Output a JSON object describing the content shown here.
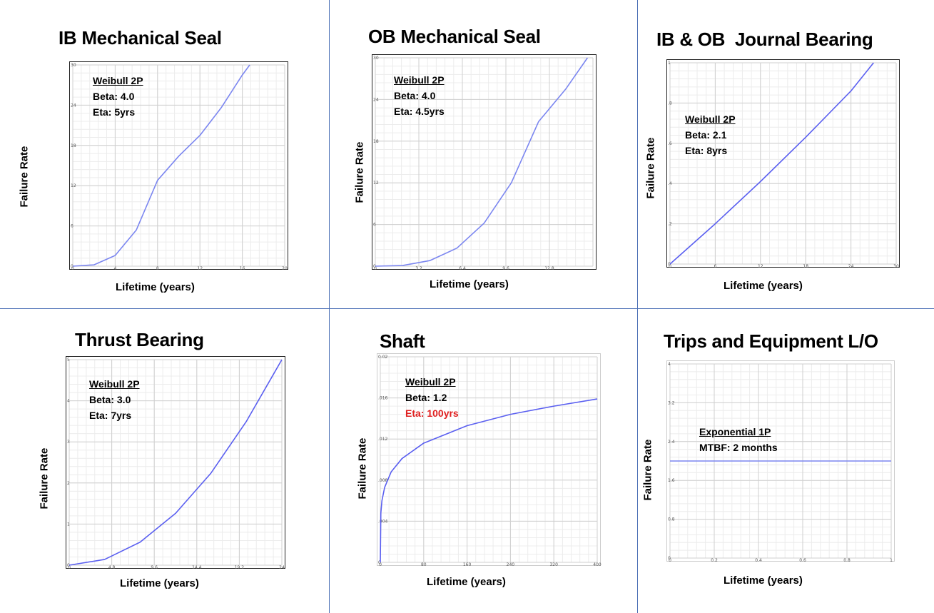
{
  "chart_data": [
    {
      "type": "line",
      "title": "IB Mechanical Seal",
      "xlabel": "Lifetime (years)",
      "ylabel": "Failure Rate",
      "xlim": [
        0,
        20
      ],
      "ylim": [
        0,
        30
      ],
      "x_ticks": [
        "0",
        "4",
        "8",
        "12",
        "16",
        "20"
      ],
      "y_ticks": [
        "0",
        "6",
        "12",
        "18",
        "24",
        "30"
      ],
      "grid": true,
      "annotation": [
        "Weibull 2P",
        "Beta: 4.0",
        "Eta: 5yrs"
      ],
      "series": [
        {
          "x": [
            0,
            2,
            4,
            6,
            8,
            10,
            12,
            14,
            16,
            16.7
          ],
          "y": [
            0,
            0.2,
            1.6,
            5.4,
            12.8,
            16.4,
            19.5,
            23.6,
            28.5,
            30
          ]
        }
      ],
      "color": "#7b86f0"
    },
    {
      "type": "line",
      "title": "OB Mechanical Seal",
      "xlabel": "Lifetime (years)",
      "ylabel": "Failure Rate",
      "xlim": [
        0,
        16
      ],
      "ylim": [
        0,
        30
      ],
      "x_ticks": [
        "0",
        "3.2",
        "6.4",
        "9.6",
        "12.8",
        ""
      ],
      "y_ticks": [
        "0",
        "6",
        "12",
        "18",
        "24",
        "30"
      ],
      "grid": true,
      "annotation": [
        "Weibull 2P",
        "Beta: 4.0",
        "Eta: 4.5yrs"
      ],
      "series": [
        {
          "x": [
            0,
            2,
            4,
            6,
            8,
            10,
            12,
            14,
            15.6
          ],
          "y": [
            0,
            0.1,
            0.8,
            2.6,
            6.2,
            12,
            20.8,
            25.5,
            30
          ]
        }
      ],
      "color": "#7b86f0"
    },
    {
      "type": "line",
      "title": "IB & OB  Journal Bearing",
      "xlabel": "Lifetime (years)",
      "ylabel": "Failure Rate",
      "xlim": [
        0,
        30
      ],
      "ylim": [
        0,
        1
      ],
      "x_ticks": [
        "0",
        "6",
        "12",
        "18",
        "24",
        "30"
      ],
      "y_ticks": [
        "0",
        ".2",
        ".4",
        ".6",
        ".8",
        "1"
      ],
      "grid": true,
      "annotation": [
        "Weibull 2P",
        "Beta: 2.1",
        "Eta: 8yrs"
      ],
      "series": [
        {
          "x": [
            0,
            6,
            12,
            18,
            24,
            27
          ],
          "y": [
            0,
            0.2,
            0.41,
            0.63,
            0.86,
            1
          ]
        }
      ],
      "color": "#5a5ff0"
    },
    {
      "type": "line",
      "title": "Thrust Bearing",
      "xlabel": "Lifetime (years)",
      "ylabel": "Failure Rate",
      "xlim": [
        0,
        24
      ],
      "ylim": [
        0,
        5
      ],
      "x_ticks": [
        "0",
        "4.8",
        "9.6",
        "14.4",
        "19.2",
        "24"
      ],
      "y_ticks": [
        "0",
        "1",
        "2",
        "3",
        "4",
        "5"
      ],
      "grid": true,
      "annotation": [
        "Weibull 2P",
        "Beta: 3.0",
        "Eta: 7yrs"
      ],
      "series": [
        {
          "x": [
            0,
            4,
            8,
            12,
            16,
            20,
            24
          ],
          "y": [
            0,
            0.14,
            0.56,
            1.26,
            2.24,
            3.5,
            5
          ]
        }
      ],
      "color": "#5a5ff0"
    },
    {
      "type": "line",
      "title": "Shaft",
      "xlabel": "Lifetime (years)",
      "ylabel": "Failure Rate",
      "xlim": [
        0,
        400
      ],
      "ylim": [
        0,
        0.02
      ],
      "x_ticks": [
        "0",
        "80",
        "160",
        "240",
        "320",
        "400"
      ],
      "y_ticks": [
        "0",
        ".004",
        ".008",
        ".012",
        ".016",
        "0.02"
      ],
      "grid": true,
      "annotation": [
        "Weibull 2P",
        "Beta: 1.2",
        "Eta: 100yrs"
      ],
      "annotation_colors": [
        "#000000",
        "#000000",
        "#e02020"
      ],
      "series": [
        {
          "x": [
            0,
            1,
            3,
            8,
            20,
            40,
            80,
            160,
            240,
            320,
            400
          ],
          "y": [
            0,
            0.0048,
            0.006,
            0.0073,
            0.0088,
            0.0101,
            0.0116,
            0.0133,
            0.0144,
            0.0152,
            0.0159
          ]
        }
      ],
      "color": "#5a5ff0"
    },
    {
      "type": "line",
      "title": "Trips and Equipment L/O",
      "xlabel": "Lifetime (years)",
      "ylabel": "Failure Rate",
      "xlim": [
        0,
        1
      ],
      "ylim": [
        0,
        4
      ],
      "x_ticks": [
        "0",
        "0.2",
        "0.4",
        "0.6",
        "0.8",
        "1"
      ],
      "y_ticks": [
        "0",
        "0.8",
        "1.6",
        "2.4",
        "3.2",
        "4"
      ],
      "grid": true,
      "annotation": [
        "Exponential 1P",
        "MTBF: 2 months"
      ],
      "series": [
        {
          "x": [
            0,
            1
          ],
          "y": [
            2,
            2
          ]
        }
      ],
      "color": "#7b86f0"
    }
  ]
}
